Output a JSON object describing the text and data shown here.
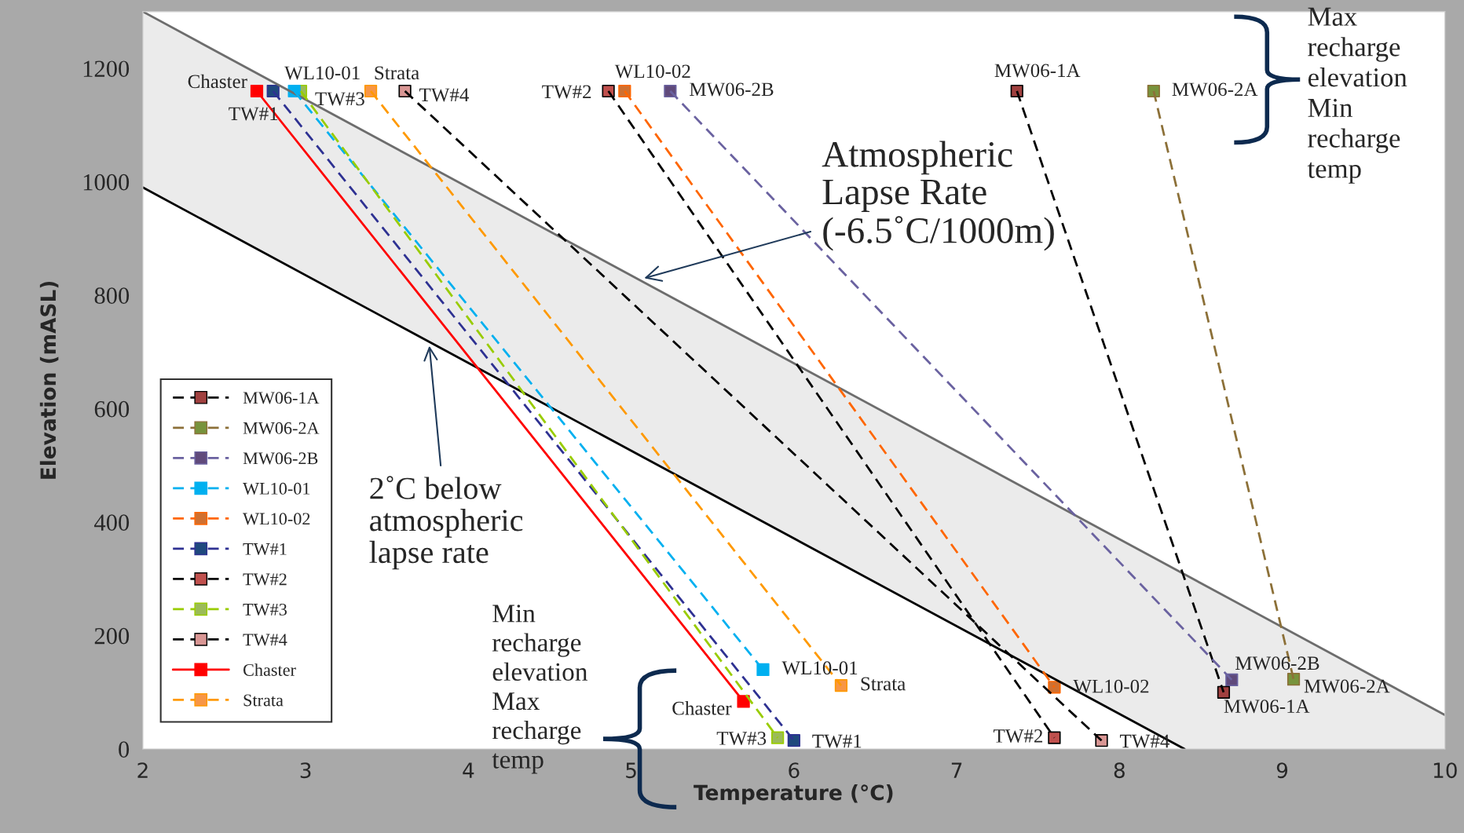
{
  "chart_data": {
    "type": "line",
    "xlabel": "Temperature (°C)",
    "ylabel": "Elevation (mASL)",
    "xlim": [
      2,
      10
    ],
    "ylim": [
      0,
      1300
    ],
    "xticks": [
      2,
      3,
      4,
      5,
      6,
      7,
      8,
      9,
      10
    ],
    "yticks": [
      0,
      200,
      400,
      600,
      800,
      1000,
      1200
    ],
    "grid": false,
    "legend": "left",
    "marker": "square",
    "line_style": "dashed",
    "series": [
      {
        "color": "#6d6d6d",
        "x": [
          2,
          8.4,
          10
        ],
        "values": [
          1300,
          308,
          60
        ],
        "lower": [
          990,
          0,
          0
        ],
        "upper": [
          1300,
          308,
          60
        ],
        "marker": "none",
        "line_style": "solid"
      },
      {
        "color": "#000000",
        "x": [
          2,
          8.4
        ],
        "values": [
          990,
          0
        ],
        "marker": "none",
        "line_style": "solid"
      },
      {
        "name": "MW06-1A",
        "color": "#000000",
        "colors": [
          "#a0403f",
          "#a0403f"
        ],
        "x": [
          7.37,
          8.64
        ],
        "values": [
          1160,
          100
        ]
      },
      {
        "name": "MW06-2A",
        "color": "#8c7038",
        "colors": [
          "#77933c",
          "#77933c"
        ],
        "x": [
          8.21,
          9.07
        ],
        "values": [
          1160,
          123
        ]
      },
      {
        "name": "MW06-2B",
        "color": "#6a62a0",
        "colors": [
          "#604a7b",
          "#604a7b"
        ],
        "x": [
          5.24,
          8.69
        ],
        "values": [
          1160,
          122
        ]
      },
      {
        "name": "WL10-01",
        "color": "#00b0f0",
        "colors": [
          "#00b0f0",
          "#00b0f0"
        ],
        "x": [
          2.93,
          5.81
        ],
        "values": [
          1160,
          140
        ]
      },
      {
        "name": "WL10-02",
        "color": "#ff6600",
        "colors": [
          "#d07030",
          "#d07030"
        ],
        "x": [
          4.96,
          7.6
        ],
        "values": [
          1160,
          109
        ]
      },
      {
        "name": "TW#1",
        "color": "#2e3192",
        "colors": [
          "#1f497d",
          "#1f497d"
        ],
        "x": [
          2.8,
          6.0
        ],
        "values": [
          1160,
          15
        ]
      },
      {
        "name": "TW#2",
        "color": "#000000",
        "colors": [
          "#c0504d",
          "#c0504d"
        ],
        "x": [
          4.86,
          7.6
        ],
        "values": [
          1160,
          20
        ]
      },
      {
        "name": "TW#3",
        "color": "#99cc00",
        "colors": [
          "#9bbb59",
          "#9bbb59"
        ],
        "x": [
          2.97,
          5.9
        ],
        "values": [
          1160,
          20
        ]
      },
      {
        "name": "TW#4",
        "color": "#000000",
        "colors": [
          "#d99694",
          "#d99694"
        ],
        "x": [
          3.61,
          7.89
        ],
        "values": [
          1160,
          15
        ]
      },
      {
        "name": "Chaster",
        "color": "#ff0000",
        "colors": [
          "#ff0000",
          "#ff0000"
        ],
        "x": [
          2.7,
          5.69
        ],
        "values": [
          1160,
          84
        ],
        "line_style": "solid"
      },
      {
        "name": "Strata",
        "color": "#ff9900",
        "colors": [
          "#f79646",
          "#f79646"
        ],
        "x": [
          3.4,
          6.29
        ],
        "values": [
          1160,
          112
        ]
      }
    ],
    "annotations": [
      {
        "text": "Chaster",
        "x": 2.7,
        "y": 1160
      },
      {
        "text": "TW#1",
        "x": 2.8,
        "y": 1160
      },
      {
        "text": "WL10-01",
        "x": 2.93,
        "y": 1160
      },
      {
        "text": "TW#3",
        "x": 2.97,
        "y": 1160
      },
      {
        "text": "Strata",
        "x": 3.4,
        "y": 1160
      },
      {
        "text": "TW#4",
        "x": 3.61,
        "y": 1160
      },
      {
        "text": "TW#2",
        "x": 4.86,
        "y": 1160
      },
      {
        "text": "WL10-02",
        "x": 4.96,
        "y": 1160
      },
      {
        "text": "MW06-2B",
        "x": 5.24,
        "y": 1160
      },
      {
        "text": "MW06-1A",
        "x": 7.37,
        "y": 1160
      },
      {
        "text": "MW06-2A",
        "x": 8.21,
        "y": 1160
      },
      {
        "text": "WL10-01",
        "x": 5.81,
        "y": 140
      },
      {
        "text": "Strata",
        "x": 6.29,
        "y": 112
      },
      {
        "text": "Chaster",
        "x": 5.69,
        "y": 84
      },
      {
        "text": "TW#3",
        "x": 5.9,
        "y": 20
      },
      {
        "text": "TW#1",
        "x": 6.0,
        "y": 15
      },
      {
        "text": "TW#2",
        "x": 7.6,
        "y": 20
      },
      {
        "text": "TW#4",
        "x": 7.89,
        "y": 15
      },
      {
        "text": "WL10-02",
        "x": 7.6,
        "y": 109
      },
      {
        "text": "MW06-1A",
        "x": 8.64,
        "y": 100
      },
      {
        "text": "MW06-2B",
        "x": 8.69,
        "y": 122
      },
      {
        "text": "MW06-2A",
        "x": 9.07,
        "y": 123
      },
      {
        "text": "Atmospheric\nLapse Rate\n(-6.5˚C/1000m)",
        "x": 5.08,
        "y": 830
      },
      {
        "text": "2˚C below\natmospheric\nlapse rate",
        "x": 3.76,
        "y": 711
      },
      "Max\nrecharge\nelevation\nMin\nrecharge\ntemp",
      "Min\nrecharge\nelevation\nMax\nrecharge\ntemp"
    ]
  }
}
